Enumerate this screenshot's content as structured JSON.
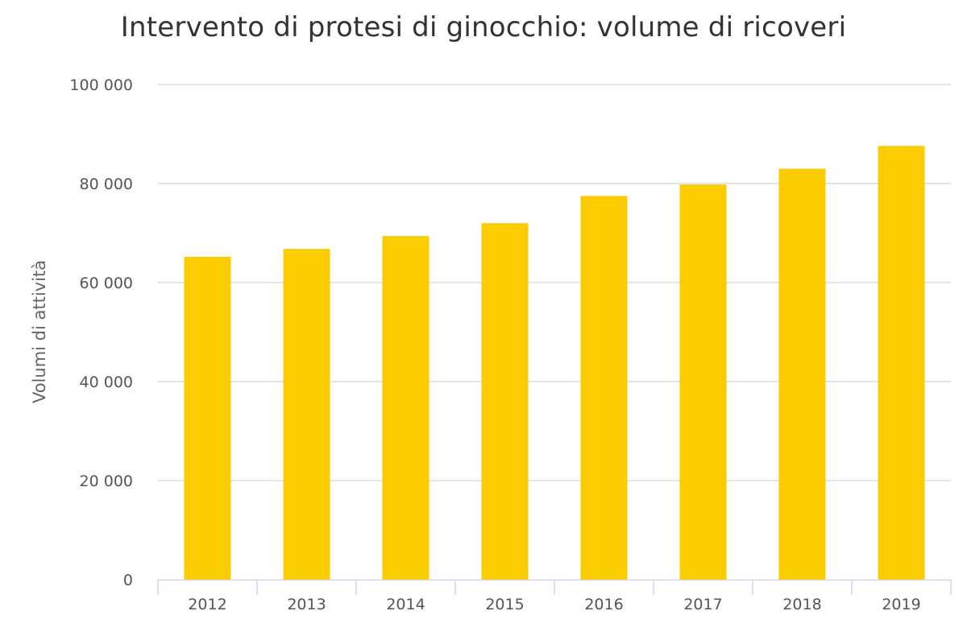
{
  "chart_data": {
    "type": "bar",
    "title": "Intervento di protesi di ginocchio: volume di ricoveri",
    "xlabel": "",
    "ylabel": "Volumi di attività",
    "categories": [
      "2012",
      "2013",
      "2014",
      "2015",
      "2016",
      "2017",
      "2018",
      "2019"
    ],
    "values": [
      65200,
      66800,
      69400,
      72000,
      77500,
      79800,
      83000,
      87600
    ],
    "ylim": [
      0,
      100000
    ],
    "yticks": [
      0,
      20000,
      40000,
      60000,
      80000,
      100000
    ],
    "ytick_labels": [
      "0",
      "20 000",
      "40 000",
      "60 000",
      "80 000",
      "100 000"
    ],
    "grid": true,
    "bar_color": "#FBCC00",
    "grid_color": "#D8DCE6",
    "axis_color": "#CCD6EB"
  }
}
